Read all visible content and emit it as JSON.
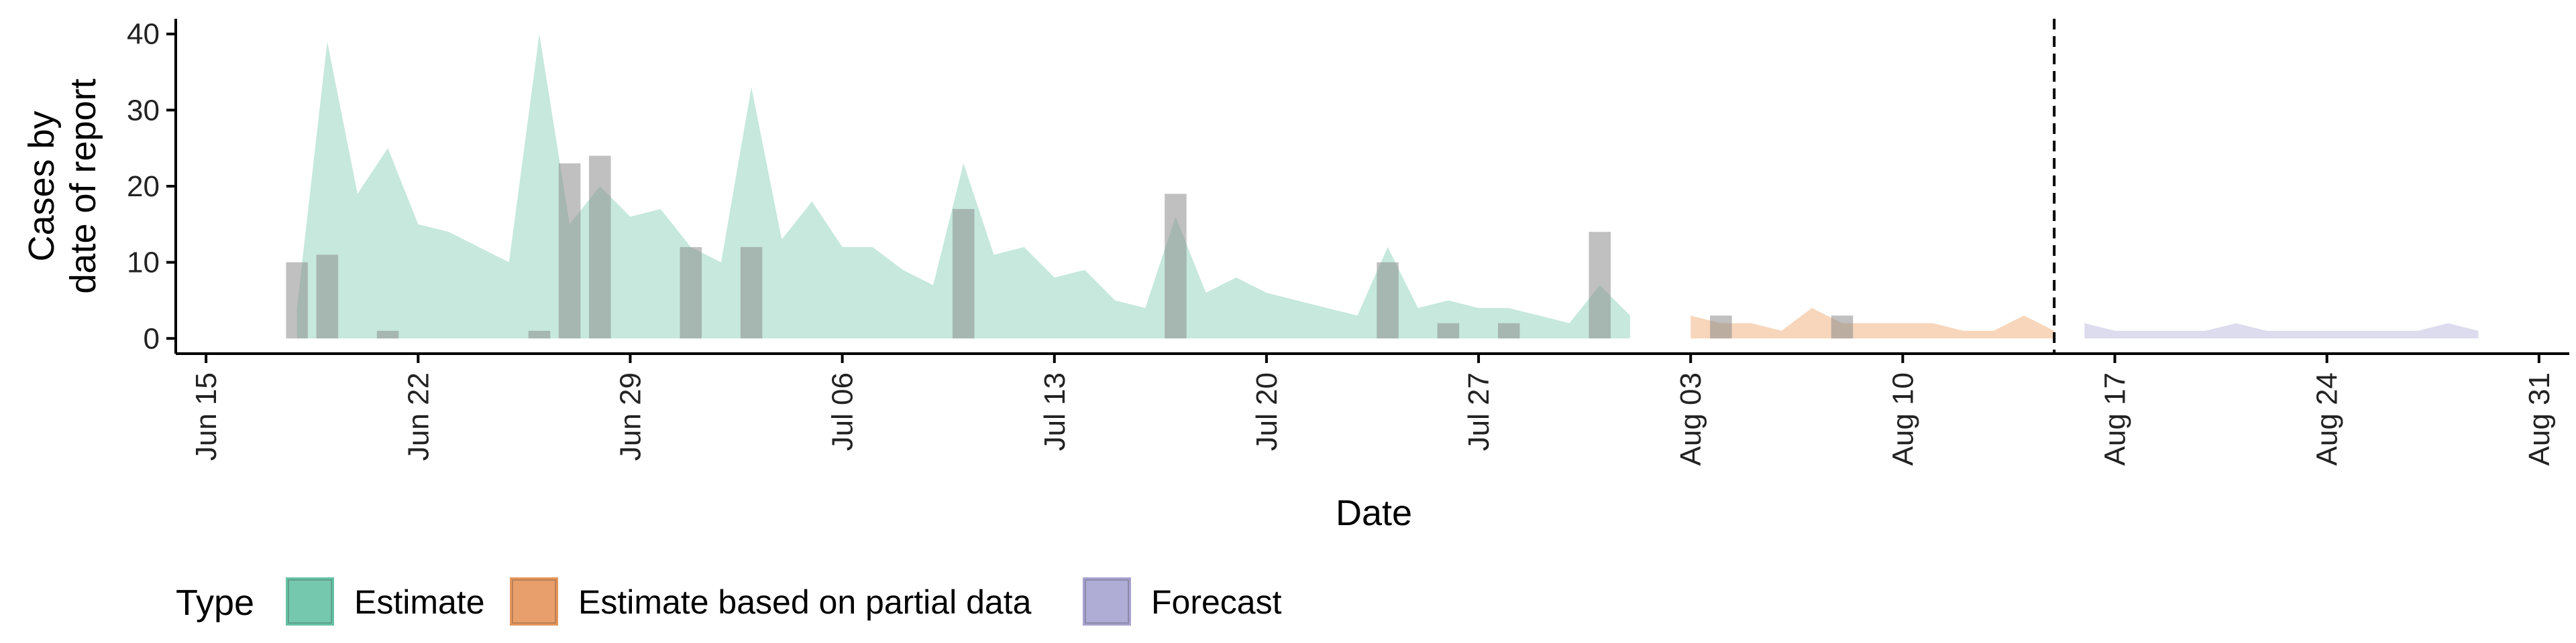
{
  "chart_data": {
    "type": "area",
    "xlabel": "Date",
    "ylabel": [
      "Cases by",
      "date of report"
    ],
    "xlim": [
      "2020-06-14",
      "2020-09-01"
    ],
    "ylim": [
      -2,
      42
    ],
    "x_ticks": [
      "2020-06-15",
      "2020-06-22",
      "2020-06-29",
      "2020-07-06",
      "2020-07-13",
      "2020-07-20",
      "2020-07-27",
      "2020-08-03",
      "2020-08-10",
      "2020-08-17",
      "2020-08-24",
      "2020-08-31"
    ],
    "x_tick_labels": [
      "Jun 15",
      "Jun 22",
      "Jun 29",
      "Jul 06",
      "Jul 13",
      "Jul 20",
      "Jul 27",
      "Aug 03",
      "Aug 10",
      "Aug 17",
      "Aug 24",
      "Aug 31"
    ],
    "y_ticks": [
      0,
      10,
      20,
      30,
      40
    ],
    "forecast_line_date": "2020-08-15",
    "grid": false,
    "legend": {
      "title": "Type",
      "position": "bottom-left",
      "entries": [
        "Estimate",
        "Estimate based on partial data",
        "Forecast"
      ]
    },
    "series": [
      {
        "name": "Estimate",
        "color": "#66C2A5",
        "fill": "#C6E8DD",
        "x": [
          "2020-06-18",
          "2020-06-19",
          "2020-06-20",
          "2020-06-21",
          "2020-06-22",
          "2020-06-23",
          "2020-06-24",
          "2020-06-25",
          "2020-06-26",
          "2020-06-27",
          "2020-06-28",
          "2020-06-29",
          "2020-06-30",
          "2020-07-01",
          "2020-07-02",
          "2020-07-03",
          "2020-07-04",
          "2020-07-05",
          "2020-07-06",
          "2020-07-07",
          "2020-07-08",
          "2020-07-09",
          "2020-07-10",
          "2020-07-11",
          "2020-07-12",
          "2020-07-13",
          "2020-07-14",
          "2020-07-15",
          "2020-07-16",
          "2020-07-17",
          "2020-07-18",
          "2020-07-19",
          "2020-07-20",
          "2020-07-21",
          "2020-07-22",
          "2020-07-23",
          "2020-07-24",
          "2020-07-25",
          "2020-07-26",
          "2020-07-27",
          "2020-07-28",
          "2020-07-29",
          "2020-07-30",
          "2020-07-31",
          "2020-08-01"
        ],
        "y": [
          4,
          39,
          19,
          25,
          15,
          14,
          12,
          10,
          40,
          15,
          20,
          16,
          17,
          12,
          10,
          33,
          13,
          18,
          12,
          12,
          9,
          7,
          23,
          11,
          12,
          8,
          9,
          5,
          4,
          16,
          6,
          8,
          6,
          5,
          4,
          3,
          12,
          4,
          5,
          4,
          4,
          3,
          2,
          7,
          3
        ]
      },
      {
        "name": "Estimate based on partial data",
        "color": "#E6955B",
        "fill": "#F7D6BB",
        "x": [
          "2020-08-03",
          "2020-08-04",
          "2020-08-05",
          "2020-08-06",
          "2020-08-07",
          "2020-08-08",
          "2020-08-09",
          "2020-08-10",
          "2020-08-11",
          "2020-08-12",
          "2020-08-13",
          "2020-08-14",
          "2020-08-15"
        ],
        "y": [
          3,
          2,
          2,
          1,
          4,
          2,
          2,
          2,
          2,
          1,
          1,
          3,
          1
        ]
      },
      {
        "name": "Forecast",
        "color": "#A6A3D0",
        "fill": "#DDDCEE",
        "x": [
          "2020-08-16",
          "2020-08-17",
          "2020-08-18",
          "2020-08-19",
          "2020-08-20",
          "2020-08-21",
          "2020-08-22",
          "2020-08-23",
          "2020-08-24",
          "2020-08-25",
          "2020-08-26",
          "2020-08-27",
          "2020-08-28",
          "2020-08-29"
        ],
        "y": [
          2,
          1,
          1,
          1,
          1,
          2,
          1,
          1,
          1,
          1,
          1,
          1,
          2,
          1
        ]
      }
    ],
    "reported_cases": {
      "color": "#8C8C8C",
      "x": [
        "2020-06-18",
        "2020-06-19",
        "2020-06-21",
        "2020-06-26",
        "2020-06-27",
        "2020-06-28",
        "2020-07-01",
        "2020-07-03",
        "2020-07-10",
        "2020-07-17",
        "2020-07-24",
        "2020-07-26",
        "2020-07-28",
        "2020-07-31",
        "2020-08-04",
        "2020-08-08"
      ],
      "y": [
        10,
        11,
        1,
        1,
        23,
        24,
        12,
        12,
        17,
        19,
        10,
        2,
        2,
        14,
        3,
        3
      ]
    }
  }
}
